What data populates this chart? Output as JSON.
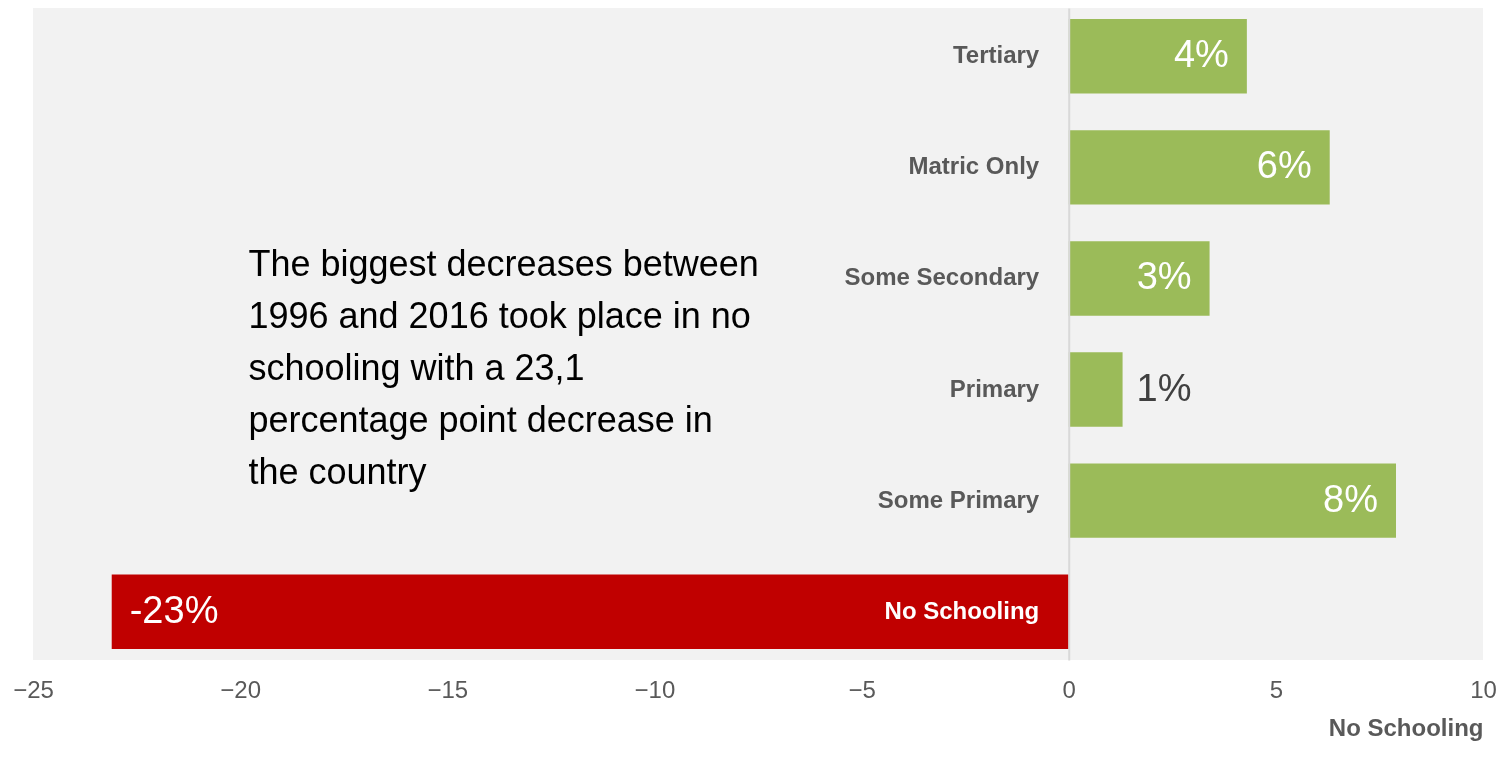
{
  "chart_data": {
    "type": "bar",
    "orientation": "horizontal",
    "xlabel": "No Schooling",
    "categories": [
      "Tertiary",
      "Matric Only",
      "Some Secondary",
      "Primary",
      "Some Primary",
      "No Schooling"
    ],
    "values": [
      4.3,
      6.3,
      3.4,
      1.3,
      7.9,
      -23.1
    ],
    "colors": [
      "#9bbb59",
      "#9bbb59",
      "#9bbb59",
      "#9bbb59",
      "#9bbb59",
      "#c00000"
    ],
    "value_labels": [
      "4%",
      "6%",
      "3%",
      "1%",
      "8%",
      "-23%"
    ],
    "xlim": [
      -25,
      10
    ],
    "xticks": [
      -25,
      -20,
      -15,
      -10,
      -5,
      0,
      5,
      10
    ],
    "grid": false,
    "annotations": [
      "The biggest decreases between 1996 and 2016 took place in no schooling with a 23,1 percentage point decrease in the country"
    ]
  }
}
